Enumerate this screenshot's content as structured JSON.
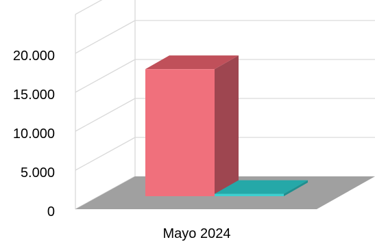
{
  "chart_data": {
    "type": "bar",
    "style": "3d-column",
    "categories": [
      "Mayo 2024"
    ],
    "series": [
      {
        "values": [
          16300
        ],
        "color": "#F0707C",
        "top_color": "#C0505A",
        "side_color": "#9E4650"
      },
      {
        "values": [
          300
        ],
        "color": "#3ED0D0",
        "top_color": "#25A8A8",
        "side_color": "#1E8F8F"
      }
    ],
    "y_ticks": [
      "0",
      "5.000",
      "10.000",
      "15.000",
      "20.000"
    ],
    "ylim": [
      0,
      20000
    ],
    "grid": true,
    "floor_color": "#A0A0A0",
    "grid_color": "#D9D9D9",
    "title": "",
    "xlabel": "",
    "ylabel": ""
  }
}
